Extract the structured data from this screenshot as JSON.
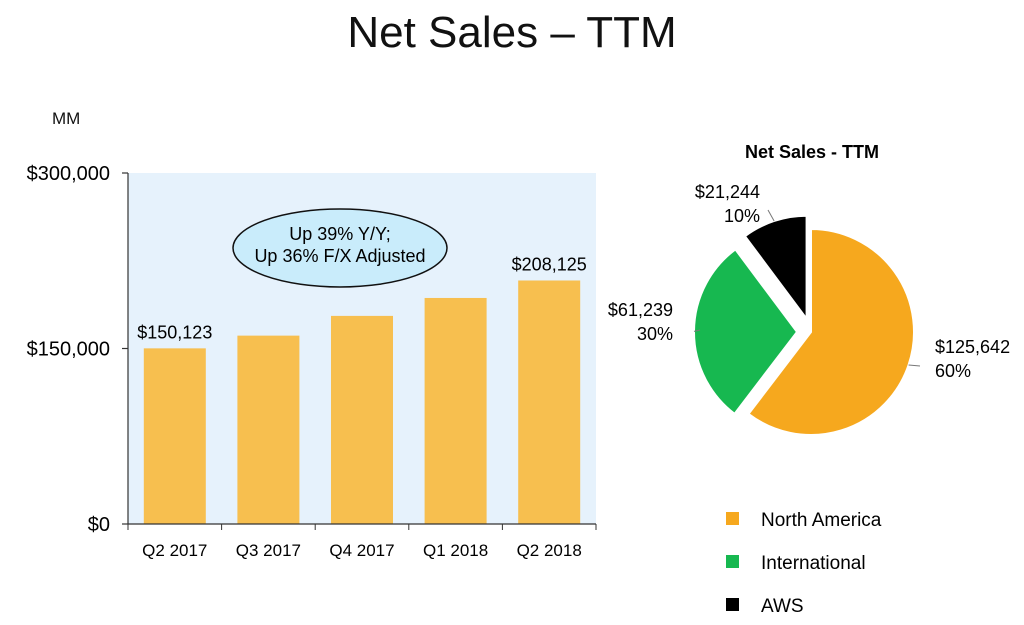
{
  "title": "Net Sales – TTM",
  "unit_label": "MM",
  "callout": {
    "line1": "Up 39% Y/Y;",
    "line2": "Up 36% F/X Adjusted"
  },
  "chart_data": [
    {
      "type": "bar",
      "title": "",
      "ylabel": "MM",
      "ylim": [
        0,
        300000
      ],
      "yticks": [
        "$0",
        "$150,000",
        "$300,000"
      ],
      "categories": [
        "Q2 2017",
        "Q3 2017",
        "Q4 2017",
        "Q1 2018",
        "Q2 2018"
      ],
      "values": [
        150123,
        161000,
        177866,
        193195,
        208125
      ],
      "data_labels": [
        "$150,123",
        "",
        "",
        "",
        "$208,125"
      ],
      "plot_background": "#e6f2fc",
      "bar_color": "#f7bf4f",
      "grid": false
    },
    {
      "type": "pie",
      "title": "Net Sales - TTM",
      "slices": [
        {
          "name": "North America",
          "value": 125642,
          "value_label": "$125,642",
          "percent_label": "60%",
          "color": "#f6a81e"
        },
        {
          "name": "International",
          "value": 61239,
          "value_label": "$61,239",
          "percent_label": "30%",
          "color": "#17b850"
        },
        {
          "name": "AWS",
          "value": 21244,
          "value_label": "$21,244",
          "percent_label": "10%",
          "color": "#000000"
        }
      ],
      "legend_position": "bottom"
    }
  ]
}
